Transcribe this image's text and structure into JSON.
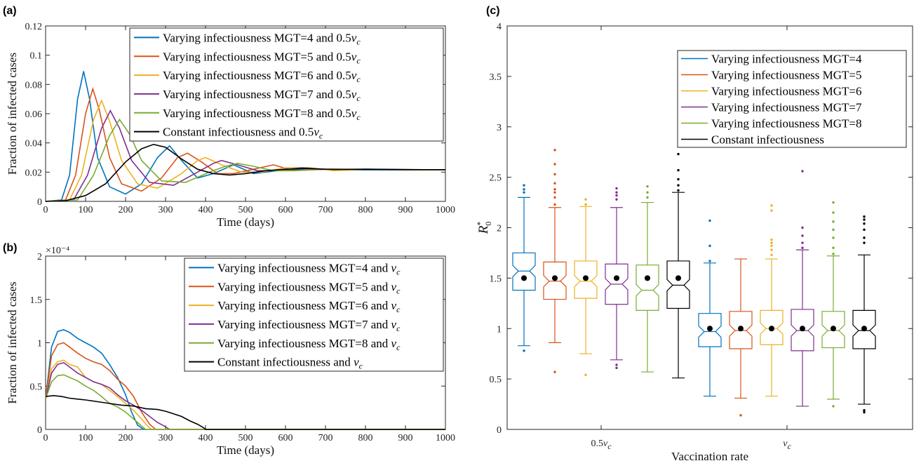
{
  "panels": {
    "a": "(a)",
    "b": "(b)",
    "c": "(c)"
  },
  "chart_data": [
    {
      "type": "line",
      "xlabel": "Time (days)",
      "ylabel": "Fraction of infected cases",
      "xlim": [
        0,
        1000
      ],
      "ylim": [
        0,
        0.12
      ],
      "xticks": [
        0,
        100,
        200,
        300,
        400,
        500,
        600,
        700,
        800,
        900,
        1000
      ],
      "yticks": [
        0,
        0.02,
        0.04,
        0.06,
        0.08,
        0.1,
        0.12
      ],
      "ytick_labels": [
        "0",
        "0.02",
        "0.04",
        "0.06",
        "0.08",
        "0.1",
        "0.12"
      ],
      "legend_position": "top-right",
      "colors": [
        "#0072BD",
        "#D95319",
        "#EDB120",
        "#7E2F8E",
        "#77AC30",
        "#000000"
      ],
      "legend": [
        "Varying infectiousness MGT=4 and 0.5v_c",
        "Varying infectiousness MGT=5 and 0.5v_c",
        "Varying infectiousness MGT=6 and 0.5v_c",
        "Varying infectiousness MGT=7 and 0.5v_c",
        "Varying infectiousness MGT=8 and 0.5v_c",
        "Constant infectiousness and 0.5v_c"
      ],
      "series": [
        {
          "name": "Varying infectiousness MGT=4 and 0.5v_c",
          "x": [
            0,
            40,
            60,
            80,
            95,
            110,
            130,
            160,
            200,
            240,
            280,
            310,
            340,
            380,
            420,
            470,
            520,
            580,
            650,
            750,
            850,
            1000
          ],
          "y": [
            0,
            0.001,
            0.018,
            0.07,
            0.089,
            0.07,
            0.03,
            0.01,
            0.005,
            0.012,
            0.03,
            0.038,
            0.028,
            0.016,
            0.019,
            0.025,
            0.019,
            0.021,
            0.022,
            0.0215,
            0.0215,
            0.0215
          ]
        },
        {
          "name": "Varying infectiousness MGT=5 and 0.5v_c",
          "x": [
            0,
            50,
            75,
            100,
            118,
            135,
            160,
            190,
            240,
            290,
            330,
            355,
            390,
            430,
            470,
            520,
            570,
            620,
            700,
            800,
            1000
          ],
          "y": [
            0,
            0.001,
            0.018,
            0.06,
            0.077,
            0.062,
            0.03,
            0.012,
            0.007,
            0.016,
            0.03,
            0.033,
            0.027,
            0.019,
            0.019,
            0.022,
            0.025,
            0.021,
            0.022,
            0.022,
            0.0215
          ]
        },
        {
          "name": "Varying infectiousness MGT=6 and 0.5v_c",
          "x": [
            0,
            60,
            90,
            120,
            140,
            160,
            190,
            230,
            280,
            340,
            380,
            400,
            440,
            490,
            540,
            600,
            660,
            720,
            800,
            1000
          ],
          "y": [
            0,
            0.001,
            0.018,
            0.056,
            0.069,
            0.055,
            0.028,
            0.012,
            0.009,
            0.019,
            0.028,
            0.03,
            0.025,
            0.02,
            0.02,
            0.023,
            0.023,
            0.021,
            0.022,
            0.0215
          ]
        },
        {
          "name": "Varying infectiousness MGT=7 and 0.5v_c",
          "x": [
            0,
            70,
            105,
            140,
            162,
            185,
            215,
            260,
            320,
            380,
            420,
            440,
            480,
            530,
            580,
            640,
            700,
            760,
            850,
            1000
          ],
          "y": [
            0,
            0.001,
            0.018,
            0.05,
            0.062,
            0.05,
            0.028,
            0.013,
            0.011,
            0.02,
            0.026,
            0.028,
            0.025,
            0.021,
            0.021,
            0.023,
            0.022,
            0.022,
            0.022,
            0.0215
          ]
        },
        {
          "name": "Varying infectiousness MGT=8 and 0.5v_c",
          "x": [
            0,
            80,
            120,
            160,
            185,
            210,
            240,
            290,
            350,
            410,
            450,
            480,
            520,
            570,
            620,
            680,
            740,
            820,
            900,
            1000
          ],
          "y": [
            0,
            0.001,
            0.018,
            0.045,
            0.056,
            0.046,
            0.028,
            0.014,
            0.013,
            0.02,
            0.024,
            0.026,
            0.024,
            0.021,
            0.021,
            0.022,
            0.022,
            0.022,
            0.0215,
            0.0215
          ]
        },
        {
          "name": "Constant infectiousness and 0.5v_c",
          "x": [
            0,
            50,
            100,
            150,
            200,
            240,
            270,
            300,
            340,
            380,
            420,
            460,
            500,
            550,
            600,
            650,
            700,
            750,
            800,
            900,
            1000
          ],
          "y": [
            0,
            0.0005,
            0.004,
            0.012,
            0.027,
            0.036,
            0.039,
            0.037,
            0.029,
            0.022,
            0.019,
            0.018,
            0.019,
            0.021,
            0.022,
            0.0225,
            0.022,
            0.0218,
            0.022,
            0.0217,
            0.0217
          ]
        }
      ]
    },
    {
      "type": "line",
      "xlabel": "Time (days)",
      "ylabel": "Fraction of infected cases",
      "xlim": [
        0,
        1000
      ],
      "ylim": [
        0,
        0.0002
      ],
      "exponent_label": "×10⁻⁴",
      "xticks": [
        0,
        100,
        200,
        300,
        400,
        500,
        600,
        700,
        800,
        900,
        1000
      ],
      "yticks": [
        0,
        5e-05,
        0.0001,
        0.00015,
        0.0002
      ],
      "ytick_labels": [
        "0",
        "0.5",
        "1",
        "1.5",
        "2"
      ],
      "legend_position": "top-right",
      "colors": [
        "#0072BD",
        "#D95319",
        "#EDB120",
        "#7E2F8E",
        "#77AC30",
        "#000000"
      ],
      "legend": [
        "Varying infectiousness MGT=4 and v_c",
        "Varying infectiousness MGT=5 and v_c",
        "Varying infectiousness MGT=6 and v_c",
        "Varying infectiousness MGT=7 and v_c",
        "Varying infectiousness MGT=8 and v_c",
        "Constant infectiousness and v_c"
      ],
      "series": [
        {
          "name": "Varying infectiousness MGT=4 and v_c",
          "x": [
            0,
            15,
            30,
            45,
            60,
            80,
            100,
            120,
            140,
            160,
            180,
            200,
            215,
            230,
            245
          ],
          "y": [
            3.5e-05,
            9.5e-05,
            0.000113,
            0.000115,
            0.000112,
            0.000105,
            0.0001,
            9.5e-05,
            8.8e-05,
            7.5e-05,
            6e-05,
            4e-05,
            2e-05,
            5e-06,
            0
          ]
        },
        {
          "name": "Varying infectiousness MGT=5 and v_c",
          "x": [
            0,
            15,
            30,
            45,
            60,
            80,
            100,
            120,
            140,
            160,
            180,
            200,
            220,
            240,
            260,
            275
          ],
          "y": [
            3.5e-05,
            8.5e-05,
            9.8e-05,
            0.0001,
            9.5e-05,
            8.8e-05,
            8.2e-05,
            7.8e-05,
            7.5e-05,
            6.8e-05,
            5.8e-05,
            5e-05,
            3.8e-05,
            2e-05,
            6e-06,
            0
          ]
        },
        {
          "name": "Varying infectiousness MGT=6 and v_c",
          "x": [
            0,
            15,
            30,
            45,
            60,
            80,
            100,
            120,
            140,
            160,
            180,
            200,
            220,
            240,
            255,
            265
          ],
          "y": [
            3.5e-05,
            7e-05,
            7.8e-05,
            8e-05,
            7.5e-05,
            7.2e-05,
            6e-05,
            5.5e-05,
            5.2e-05,
            4.5e-05,
            3.8e-05,
            3e-05,
            2.2e-05,
            1.2e-05,
            4e-06,
            0
          ]
        },
        {
          "name": "Varying infectiousness MGT=7 and v_c",
          "x": [
            0,
            15,
            30,
            45,
            60,
            80,
            100,
            120,
            140,
            160,
            180,
            200,
            220,
            240,
            260,
            280,
            300,
            310
          ],
          "y": [
            3.5e-05,
            6.5e-05,
            7.5e-05,
            7.7e-05,
            7.2e-05,
            6.5e-05,
            6e-05,
            5.5e-05,
            5.2e-05,
            4.8e-05,
            4e-05,
            3.3e-05,
            2.8e-05,
            2.2e-05,
            1.5e-05,
            8e-06,
            3e-06,
            0
          ]
        },
        {
          "name": "Varying infectiousness MGT=8 and v_c",
          "x": [
            0,
            15,
            30,
            45,
            60,
            80,
            100,
            120,
            140,
            160,
            180,
            200,
            220,
            240,
            250
          ],
          "y": [
            3.5e-05,
            5.5e-05,
            6.2e-05,
            6.3e-05,
            6e-05,
            5.6e-05,
            5e-05,
            4.5e-05,
            3.8e-05,
            3e-05,
            2.6e-05,
            2e-05,
            1.2e-05,
            4e-06,
            0
          ]
        },
        {
          "name": "Constant infectiousness and v_c",
          "x": [
            0,
            20,
            40,
            60,
            80,
            100,
            130,
            160,
            190,
            220,
            250,
            280,
            300,
            320,
            340,
            360,
            380,
            395,
            400
          ],
          "y": [
            3.8e-05,
            3.9e-05,
            3.8e-05,
            3.6e-05,
            3.5e-05,
            3.4e-05,
            3.2e-05,
            3e-05,
            2.8e-05,
            2.7e-05,
            2.4e-05,
            2.3e-05,
            2.1e-05,
            1.8e-05,
            1.5e-05,
            1e-05,
            6e-06,
            2e-06,
            0
          ]
        }
      ]
    },
    {
      "type": "box",
      "xlabel": "Vaccination rate",
      "ylabel": "R*_0",
      "ylim": [
        0,
        4
      ],
      "yticks": [
        0,
        0.5,
        1,
        1.5,
        2,
        2.5,
        3,
        3.5,
        4
      ],
      "ytick_labels": [
        "0",
        "0.5",
        "1",
        "1.5",
        "2",
        "2.5",
        "3",
        "3.5",
        "4"
      ],
      "categories": [
        "0.5v_c",
        "v_c"
      ],
      "legend_position": "top-right",
      "colors": [
        "#0072BD",
        "#D95319",
        "#EDB120",
        "#7E2F8E",
        "#77AC30",
        "#000000"
      ],
      "legend": [
        "Varying infectiousness MGT=4",
        "Varying infectiousness MGT=5",
        "Varying infectiousness MGT=6",
        "Varying infectiousness MGT=7",
        "Varying infectiousness MGT=8",
        "Constant infectiousness"
      ],
      "groups": [
        {
          "category": "0.5v_c",
          "boxes": [
            {
              "whisker_low": 0.83,
              "q1": 1.38,
              "median": 1.57,
              "q3": 1.75,
              "whisker_high": 2.3,
              "mean": 1.5,
              "outliers": [
                0.78,
                2.35,
                2.38,
                2.42
              ]
            },
            {
              "whisker_low": 0.86,
              "q1": 1.29,
              "median": 1.47,
              "q3": 1.66,
              "whisker_high": 2.2,
              "mean": 1.5,
              "outliers": [
                0.57,
                2.23,
                2.3,
                2.35,
                2.38,
                2.44,
                2.53,
                2.63,
                2.77
              ]
            },
            {
              "whisker_low": 0.75,
              "q1": 1.3,
              "median": 1.47,
              "q3": 1.67,
              "whisker_high": 2.21,
              "mean": 1.5,
              "outliers": [
                0.54,
                2.23,
                2.28
              ]
            },
            {
              "whisker_low": 0.69,
              "q1": 1.24,
              "median": 1.44,
              "q3": 1.64,
              "whisker_high": 2.2,
              "mean": 1.5,
              "outliers": [
                0.61,
                0.64,
                2.28,
                2.32,
                2.35,
                2.39
              ]
            },
            {
              "whisker_low": 0.57,
              "q1": 1.18,
              "median": 1.38,
              "q3": 1.63,
              "whisker_high": 2.25,
              "mean": 1.5,
              "outliers": [
                2.3,
                2.35,
                2.41
              ]
            },
            {
              "whisker_low": 0.51,
              "q1": 1.2,
              "median": 1.43,
              "q3": 1.67,
              "whisker_high": 2.35,
              "mean": 1.5,
              "outliers": [
                2.37,
                2.42,
                2.48,
                2.57,
                2.73
              ]
            }
          ]
        },
        {
          "category": "v_c",
          "boxes": [
            {
              "whisker_low": 0.33,
              "q1": 0.82,
              "median": 0.97,
              "q3": 1.15,
              "whisker_high": 1.65,
              "mean": 1.0,
              "outliers": [
                1.67,
                1.82,
                2.07
              ]
            },
            {
              "whisker_low": 0.31,
              "q1": 0.8,
              "median": 0.98,
              "q3": 1.17,
              "whisker_high": 1.69,
              "mean": 1.0,
              "outliers": [
                0.14
              ]
            },
            {
              "whisker_low": 0.33,
              "q1": 0.84,
              "median": 1.0,
              "q3": 1.18,
              "whisker_high": 1.69,
              "mean": 1.0,
              "outliers": [
                1.73,
                1.78,
                1.82,
                1.85,
                1.88,
                2.17,
                2.22
              ]
            },
            {
              "whisker_low": 0.23,
              "q1": 0.78,
              "median": 0.98,
              "q3": 1.19,
              "whisker_high": 1.78,
              "mean": 1.0,
              "outliers": [
                1.8,
                1.85,
                1.92,
                2.0,
                2.56
              ]
            },
            {
              "whisker_low": 0.3,
              "q1": 0.81,
              "median": 0.98,
              "q3": 1.17,
              "whisker_high": 1.72,
              "mean": 1.0,
              "outliers": [
                0.23,
                1.74,
                1.8,
                1.9,
                1.98,
                2.06,
                2.15,
                2.25
              ]
            },
            {
              "whisker_low": 0.25,
              "q1": 0.8,
              "median": 0.98,
              "q3": 1.18,
              "whisker_high": 1.73,
              "mean": 1.0,
              "outliers": [
                0.17,
                0.19,
                1.85,
                1.9,
                1.98,
                2.04,
                2.08,
                2.11
              ]
            }
          ]
        }
      ]
    }
  ]
}
